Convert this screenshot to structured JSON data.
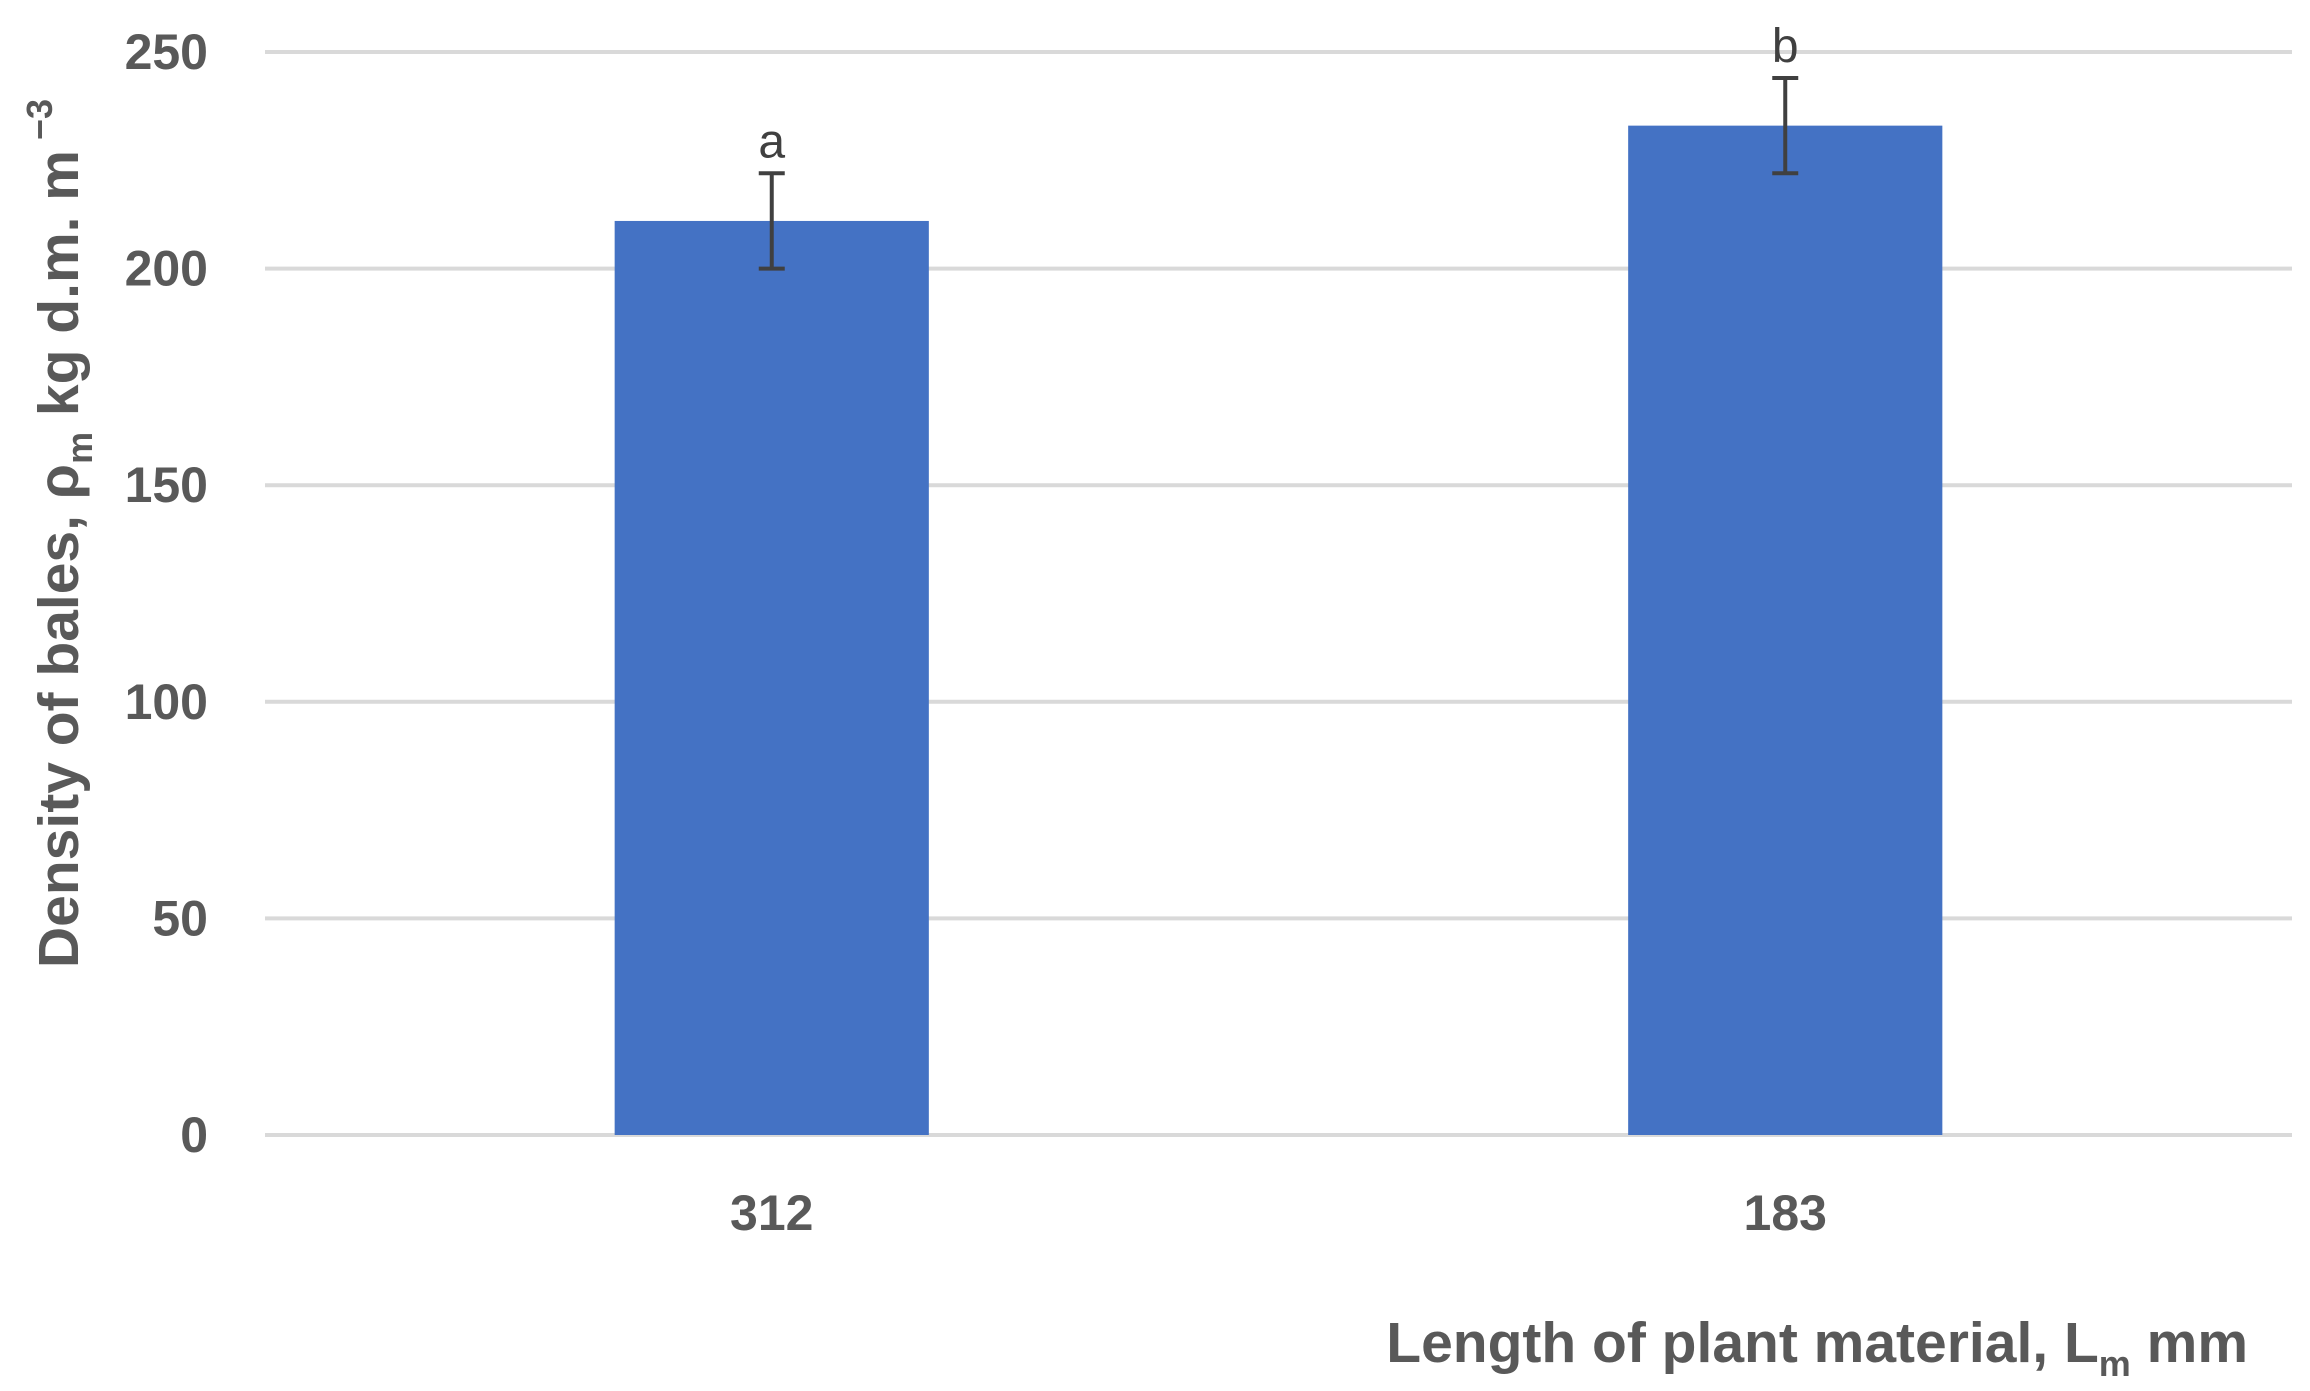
{
  "chart_data": {
    "type": "bar",
    "categories": [
      "312",
      "183"
    ],
    "values": [
      211,
      233
    ],
    "error": [
      11,
      11
    ],
    "labels": [
      "a",
      "b"
    ],
    "series": [
      {
        "values": [
          211,
          233
        ],
        "color": "#4472C4"
      }
    ],
    "xlabel": {
      "main": "Length of plant material, L",
      "sub": "m",
      "suffix": " mm"
    },
    "ylabel": {
      "main": "Density of bales, ρ",
      "sub": "m",
      "suffix": " kg d.m. m",
      "sup": " −3"
    },
    "ylim": [
      0,
      250
    ],
    "yticks": [
      "0",
      "50",
      "100",
      "150",
      "200",
      "250"
    ],
    "grid": true,
    "legend": "none",
    "colors": {
      "bar": "#4472C4",
      "grid": "#D9D9D9",
      "error_bar": "#404040",
      "text": "#595959"
    }
  }
}
